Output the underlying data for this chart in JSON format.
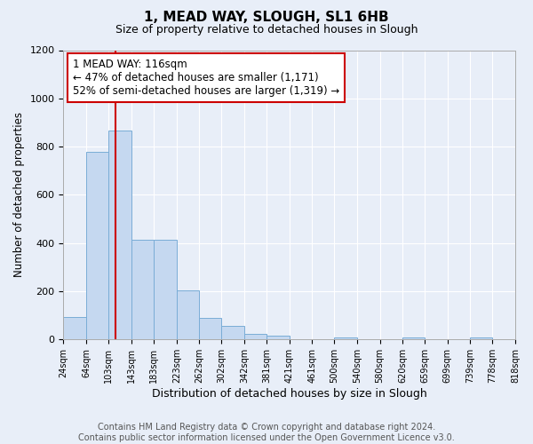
{
  "title": "1, MEAD WAY, SLOUGH, SL1 6HB",
  "subtitle": "Size of property relative to detached houses in Slough",
  "xlabel": "Distribution of detached houses by size in Slough",
  "ylabel": "Number of detached properties",
  "bar_color": "#c5d8f0",
  "bar_edge_color": "#7aadd6",
  "background_color": "#e8eef8",
  "plot_bg_color": "#e8eef8",
  "grid_color": "#d0d8e8",
  "vline_x": 116,
  "vline_color": "#cc0000",
  "annotation_text": "1 MEAD WAY: 116sqm\n← 47% of detached houses are smaller (1,171)\n52% of semi-detached houses are larger (1,319) →",
  "annotation_box_color": "#ffffff",
  "annotation_box_edge": "#cc0000",
  "bin_edges": [
    24,
    64,
    103,
    143,
    183,
    223,
    262,
    302,
    342,
    381,
    421,
    461,
    500,
    540,
    580,
    620,
    659,
    699,
    739,
    778,
    818
  ],
  "bin_heights": [
    95,
    780,
    865,
    415,
    415,
    205,
    90,
    55,
    25,
    15,
    0,
    0,
    10,
    0,
    0,
    10,
    0,
    0,
    10,
    0
  ],
  "ylim": [
    0,
    1200
  ],
  "yticks": [
    0,
    200,
    400,
    600,
    800,
    1000,
    1200
  ],
  "footer": "Contains HM Land Registry data © Crown copyright and database right 2024.\nContains public sector information licensed under the Open Government Licence v3.0.",
  "footer_fontsize": 7.0,
  "title_fontsize": 11,
  "subtitle_fontsize": 9,
  "xlabel_fontsize": 9,
  "ylabel_fontsize": 8.5,
  "tick_fontsize": 8,
  "xtick_fontsize": 7
}
